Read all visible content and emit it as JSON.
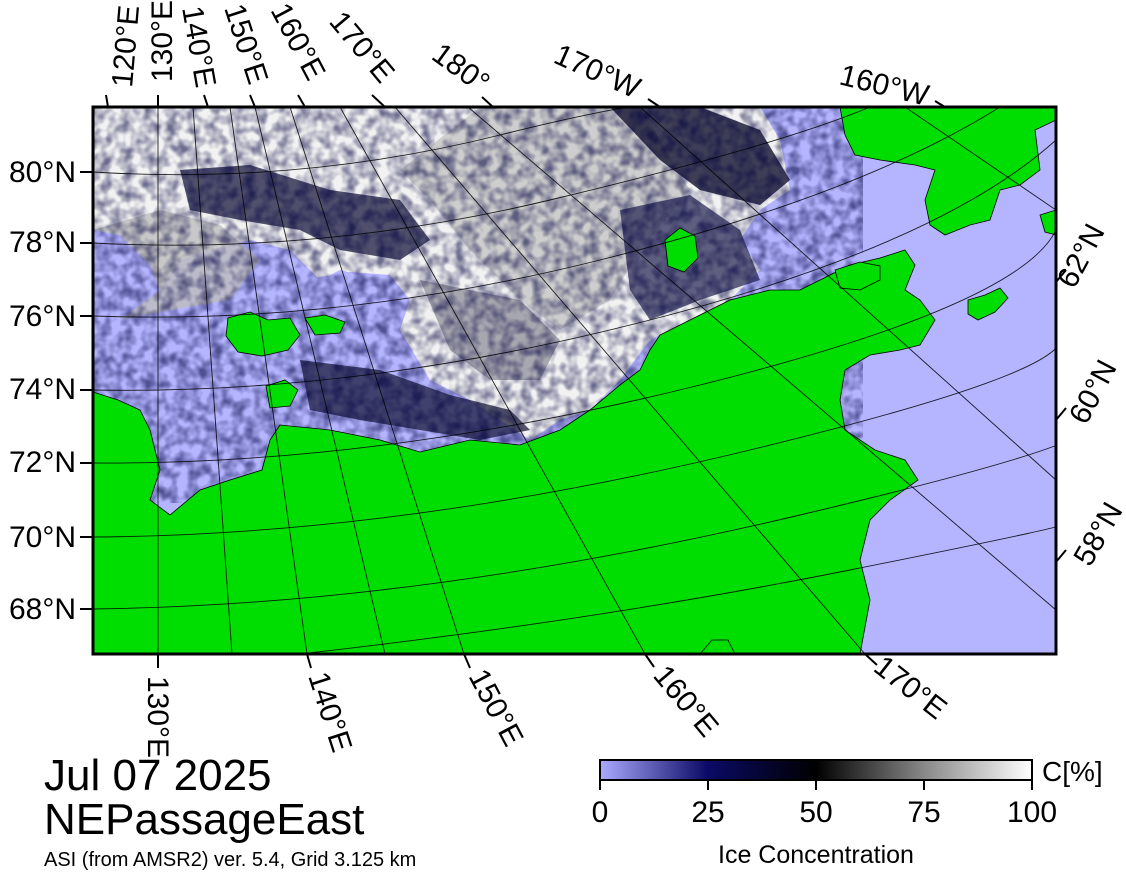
{
  "title": {
    "date": "Jul 07 2025",
    "region": "NEPassageEast",
    "product": "ASI (from AMSR2) ver. 5.4,  Grid 3.125 km"
  },
  "colorbar": {
    "label": "Ice Concentration",
    "unit": "C[%]",
    "ticks": [
      "0",
      "25",
      "50",
      "75",
      "100"
    ],
    "stops": [
      "#aaaaff",
      "#0a0a66",
      "#000000",
      "#888888",
      "#ffffff"
    ]
  },
  "map": {
    "colors": {
      "land": "#00dd00",
      "water": "#b4b4ff",
      "ice_high": "#ffffff",
      "ice_mid": "#000000",
      "ice_low": "#000080"
    },
    "top_labels": [
      "120°E",
      "130°E",
      "140°E",
      "150°E",
      "160°E",
      "170°E",
      "180°",
      "170°W",
      "160°W"
    ],
    "left_labels": [
      "80°N",
      "78°N",
      "76°N",
      "74°N",
      "72°N",
      "70°N",
      "68°N"
    ],
    "right_labels": [
      "62°N",
      "60°N",
      "58°N"
    ],
    "bottom_labels": [
      "130°E",
      "140°E",
      "150°E",
      "160°E",
      "170°E"
    ]
  }
}
